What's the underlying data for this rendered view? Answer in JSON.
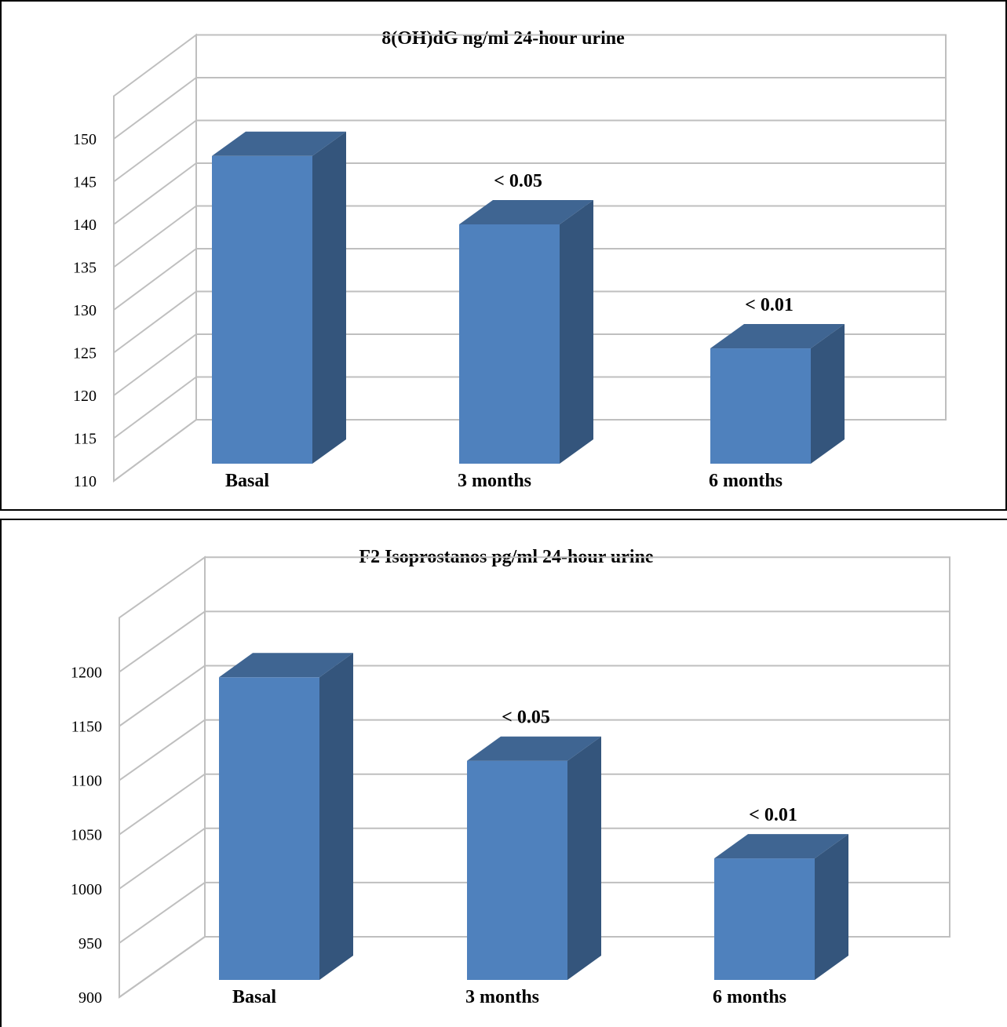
{
  "colors": {
    "bar_front": "#4f81bd",
    "bar_side": "#34557c",
    "bar_top": "#3f6592",
    "grid": "#bfbfbf",
    "frame": "#000000",
    "text": "#000000"
  },
  "chart_data": [
    {
      "type": "bar",
      "title": "8(OH)dG ng/ml 24-hour urine",
      "categories": [
        "Basal",
        "3 months",
        "6 months"
      ],
      "values": [
        148,
        140,
        125.5
      ],
      "annotations": [
        "",
        "< 0.05",
        "< 0.01"
      ],
      "ylim": [
        110,
        150
      ],
      "y_ticks": [
        "110",
        "115",
        "120",
        "125",
        "130",
        "135",
        "140",
        "145",
        "150"
      ],
      "xlabel": "",
      "ylabel": "",
      "grid": true,
      "style": "3d-column"
    },
    {
      "type": "bar",
      "title": "F2 Isoprostanos pg/ml 24-hour urine",
      "categories": [
        "Basal",
        "3 months",
        "6 months"
      ],
      "values": [
        1195,
        1118,
        1028
      ],
      "annotations": [
        "",
        "< 0.05",
        "< 0.01"
      ],
      "ylim": [
        900,
        1200
      ],
      "y_ticks": [
        "900",
        "950",
        "1000",
        "1050",
        "1100",
        "1150",
        "1200"
      ],
      "xlabel": "",
      "ylabel": "",
      "grid": true,
      "style": "3d-column"
    }
  ]
}
